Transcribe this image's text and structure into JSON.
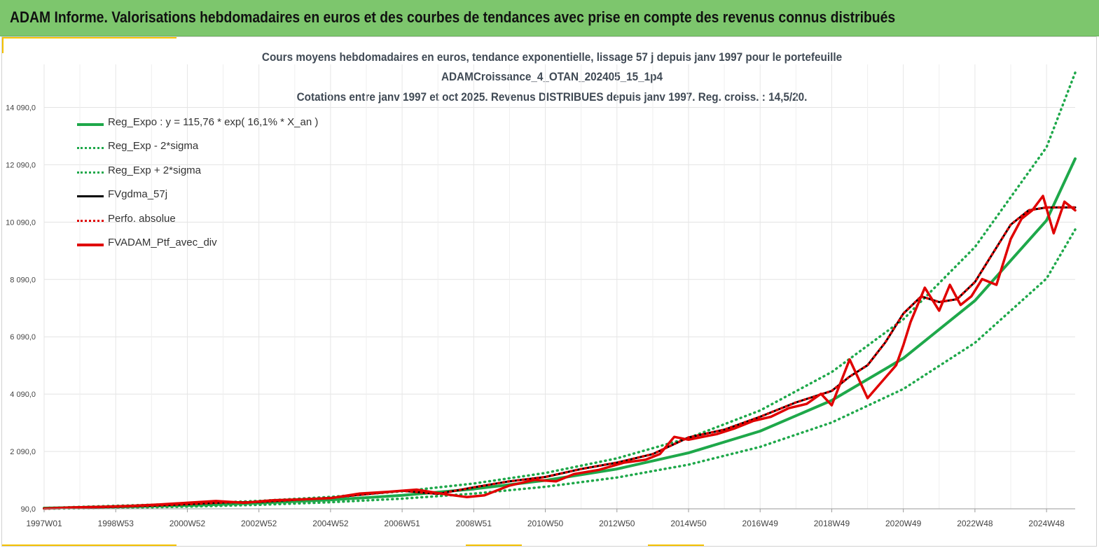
{
  "banner": {
    "title": "ADAM Informe. Valorisations hebdomadaires en euros et des courbes de tendances avec prise en compte des revenus connus distribués"
  },
  "colors": {
    "banner_bg": "#7dc66d",
    "accent": "#f5c200",
    "reg_expo": "#1ea84a",
    "reg_bounds": "#1ea84a",
    "fvgdma": "#000000",
    "perfo": "#e00000",
    "ptf": "#e00000"
  },
  "chart_data": {
    "type": "line",
    "title_lines": [
      "Cours moyens hebdomadaires  en euros, tendance exponentielle, lissage 57 j depuis janv 1997 pour le portefeuille",
      "ADAMCroissance_4_OTAN_202405_15_1p4",
      "Cotations  entre janv 1997 et oct 2025. Revenus DISTRIBUES  depuis janv 1997. Reg. croiss. : 14,5/20."
    ],
    "y_ticks": [
      "90,0",
      "2 090,0",
      "4 090,0",
      "6 090,0",
      "8 090,0",
      "10 090,0",
      "12 090,0",
      "14 090,0"
    ],
    "y_tick_values": [
      90,
      2090,
      4090,
      6090,
      8090,
      10090,
      12090,
      14090
    ],
    "ylim": [
      90,
      15590
    ],
    "x_ticks": [
      "1997W01",
      "1998W53",
      "2000W52",
      "2002W52",
      "2004W52",
      "2006W51",
      "2008W51",
      "2010W50",
      "2012W50",
      "2014W50",
      "2016W49",
      "2018W49",
      "2020W49",
      "2022W48",
      "2024W48"
    ],
    "x_tick_years": [
      1997.0,
      1999.0,
      2001.0,
      2003.0,
      2005.0,
      2007.0,
      2009.0,
      2011.0,
      2013.0,
      2015.0,
      2017.0,
      2019.0,
      2021.0,
      2023.0,
      2025.0
    ],
    "xlim": [
      1997.0,
      2025.8
    ],
    "grid": true,
    "legend_position": "top-left",
    "series": [
      {
        "name": "Reg_Expo : y = 115,76 * exp( 16,1% *  X_an )",
        "style": "solid",
        "width": 4,
        "color": "#1ea84a",
        "x": [
          1997,
          1999,
          2001,
          2003,
          2005,
          2007,
          2009,
          2011,
          2013,
          2015,
          2017,
          2019,
          2021,
          2023,
          2025,
          2025.8
        ],
        "values": [
          115,
          160,
          210,
          290,
          400,
          560,
          780,
          1080,
          1480,
          2040,
          2800,
          3870,
          5340,
          7350,
          10150,
          12300
        ]
      },
      {
        "name": "Reg_Exp - 2*sigma",
        "style": "dotted",
        "width": 3,
        "color": "#1ea84a",
        "x": [
          1997,
          1999,
          2001,
          2003,
          2005,
          2007,
          2009,
          2011,
          2013,
          2015,
          2017,
          2019,
          2021,
          2023,
          2025,
          2025.8
        ],
        "values": [
          95,
          125,
          165,
          230,
          320,
          445,
          620,
          860,
          1180,
          1630,
          2250,
          3100,
          4270,
          5880,
          8120,
          9830
        ]
      },
      {
        "name": "Reg_Exp + 2*sigma",
        "style": "dotted",
        "width": 3,
        "color": "#1ea84a",
        "x": [
          1997,
          1999,
          2001,
          2003,
          2005,
          2007,
          2009,
          2011,
          2013,
          2015,
          2017,
          2019,
          2021,
          2023,
          2025,
          2025.8
        ],
        "values": [
          120,
          195,
          265,
          365,
          505,
          700,
          970,
          1340,
          1850,
          2560,
          3520,
          4860,
          6700,
          9220,
          12700,
          15300
        ]
      },
      {
        "name": "FVgdma_57j",
        "style": "solid",
        "width": 3,
        "color": "#000000",
        "x": [
          1997,
          1998,
          1999,
          2000,
          2001,
          2002,
          2003,
          2004,
          2005,
          2006,
          2007,
          2008,
          2009,
          2010,
          2011,
          2012,
          2013,
          2014,
          2015,
          2016,
          2017,
          2018,
          2019,
          2019.5,
          2020,
          2020.5,
          2021,
          2021.5,
          2022,
          2022.5,
          2023,
          2023.5,
          2024,
          2024.5,
          2025,
          2025.8
        ],
        "values": [
          100,
          130,
          160,
          200,
          250,
          310,
          330,
          400,
          470,
          600,
          720,
          610,
          840,
          1050,
          1200,
          1480,
          1700,
          2000,
          2580,
          2850,
          3300,
          3800,
          4200,
          4700,
          5100,
          5900,
          6900,
          7500,
          7300,
          7400,
          8000,
          9000,
          10000,
          10500,
          10600,
          10600
        ]
      },
      {
        "name": "Perfo. absolue",
        "style": "dotted",
        "width": 3,
        "color": "#e00000",
        "x": [
          1997,
          1998,
          1999,
          2000,
          2001,
          2002,
          2003,
          2004,
          2005,
          2006,
          2007,
          2008,
          2009,
          2010,
          2011,
          2012,
          2013,
          2014,
          2015,
          2016,
          2017,
          2018,
          2019,
          2019.5,
          2020,
          2020.5,
          2021,
          2021.5,
          2022,
          2022.5,
          2023,
          2023.5,
          2024,
          2024.5,
          2025,
          2025.8
        ],
        "values": [
          100,
          130,
          160,
          200,
          250,
          310,
          330,
          400,
          470,
          600,
          720,
          610,
          840,
          1050,
          1200,
          1480,
          1700,
          2000,
          2580,
          2850,
          3300,
          3800,
          4200,
          4700,
          5100,
          5900,
          6900,
          7500,
          7300,
          7400,
          8000,
          9000,
          10000,
          10500,
          10600,
          10600
        ]
      },
      {
        "name": "FVADAM_Ptf_avec_div",
        "style": "solid",
        "width": 3.5,
        "color": "#e00000",
        "x": [
          1997,
          1997.8,
          1998.6,
          1999.4,
          2000.2,
          2001,
          2001.8,
          2002.6,
          2003.4,
          2004.2,
          2005,
          2005.8,
          2006.6,
          2007.4,
          2008.2,
          2008.8,
          2009.3,
          2010,
          2010.7,
          2011.3,
          2011.8,
          2012.5,
          2013.2,
          2013.8,
          2014.2,
          2014.6,
          2015,
          2015.4,
          2015.8,
          2016.3,
          2016.8,
          2017.3,
          2017.8,
          2018.3,
          2018.7,
          2019,
          2019.5,
          2020,
          2020.8,
          2021,
          2021.2,
          2021.6,
          2022,
          2022.3,
          2022.6,
          2022.9,
          2023.2,
          2023.6,
          2024,
          2024.3,
          2024.6,
          2024.9,
          2025.2,
          2025.5,
          2025.8
        ],
        "values": [
          100,
          140,
          160,
          190,
          240,
          300,
          360,
          300,
          390,
          420,
          460,
          620,
          680,
          760,
          600,
          500,
          560,
          900,
          1100,
          1050,
          1300,
          1450,
          1700,
          1800,
          2000,
          2600,
          2500,
          2600,
          2700,
          2900,
          3150,
          3300,
          3600,
          3750,
          4100,
          3700,
          5300,
          3950,
          5100,
          5800,
          6600,
          7800,
          7000,
          7900,
          7200,
          7500,
          8100,
          7900,
          9500,
          10200,
          10500,
          11000,
          9700,
          10800,
          10500
        ]
      }
    ]
  }
}
